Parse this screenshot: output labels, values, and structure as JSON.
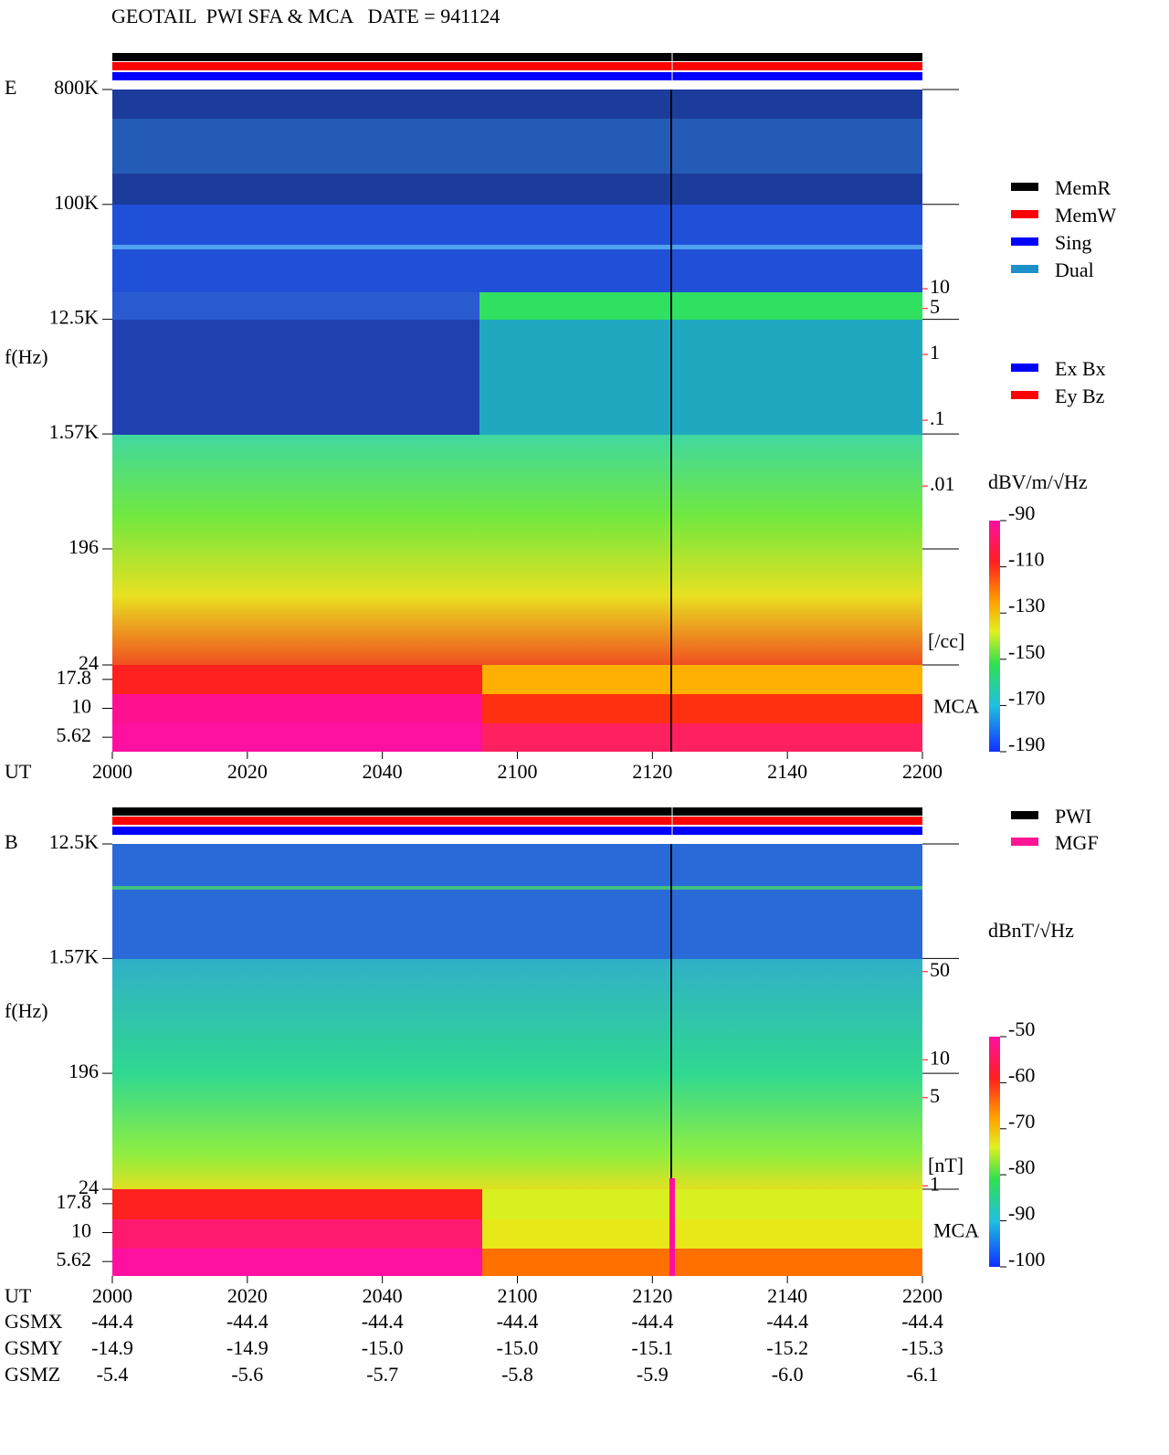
{
  "chart_data": [
    {
      "type": "spectrogram",
      "title": "GEOTAIL  PWI SFA & MCA   DATE = 941124",
      "panel_label": "E",
      "ylabel": "f(Hz)",
      "xlabel": "UT",
      "log_y": true,
      "ylim": [
        24,
        800000
      ],
      "yticks": [
        {
          "value": 800000,
          "label": "800K"
        },
        {
          "value": 100000,
          "label": "100K"
        },
        {
          "value": 12500,
          "label": "12.5K"
        },
        {
          "value": 1570,
          "label": "1.57K"
        },
        196,
        24
      ],
      "mca_label": "MCA",
      "mca_ticks": [
        17.8,
        10,
        5.62
      ],
      "categories": [
        "2000",
        "2020",
        "2040",
        "2100",
        "2120",
        "2140",
        "2200"
      ],
      "y2lim": [
        1.9e-05,
        10700
      ],
      "y2ticks": [
        10,
        5,
        1,
        {
          "value": 0.1,
          "label": ".1"
        },
        {
          "value": 0.01,
          "label": ".01"
        }
      ],
      "y2label": "[/cc]",
      "y2color": "#ff0000",
      "colorbar": {
        "label": "dBV/m/√Hz",
        "lim": [
          -190,
          -90
        ],
        "ticks": [
          -90,
          -110,
          -130,
          -150,
          -170,
          -190
        ]
      },
      "legend": [
        [
          {
            "name": "MemR",
            "color": "#000000"
          },
          {
            "name": "MemW",
            "color": "#ff0000"
          },
          {
            "name": "Sing",
            "color": "#0000ff"
          },
          {
            "name": "Dual",
            "color": "#1e90c8"
          }
        ],
        [
          {
            "name": "Ex Bx",
            "color": "#0000ff"
          },
          {
            "name": "Ey Bz",
            "color": "#ff0000"
          }
        ]
      ]
    },
    {
      "type": "spectrogram",
      "panel_label": "B",
      "ylabel": "f(Hz)",
      "xlabel": "UT",
      "log_y": true,
      "ylim": [
        24,
        12500
      ],
      "yticks": [
        {
          "value": 12500,
          "label": "12.5K"
        },
        {
          "value": 1570,
          "label": "1.57K"
        },
        196,
        24
      ],
      "mca_label": "MCA",
      "mca_ticks": [
        17.8,
        10,
        5.62
      ],
      "categories": [
        "2000",
        "2020",
        "2040",
        "2100",
        "2120",
        "2140",
        "2200"
      ],
      "y2lim": [
        0.94,
        515
      ],
      "y2ticks": [
        50,
        10,
        5,
        1
      ],
      "y2label": "[nT]",
      "y2color": "#ff0000",
      "colorbar": {
        "label": "dBnT/√Hz",
        "lim": [
          -100,
          -50
        ],
        "ticks": [
          -50,
          -60,
          -70,
          -80,
          -90,
          -100
        ]
      },
      "legend": [
        [
          {
            "name": "PWI",
            "color": "#000000"
          },
          {
            "name": "MGF",
            "color": "#ff1493"
          }
        ]
      ],
      "gsm": [
        {
          "name": "GSMX",
          "values": [
            "-44.4",
            "-44.4",
            "-44.4",
            "-44.4",
            "-44.4",
            "-44.4",
            "-44.4"
          ]
        },
        {
          "name": "GSMY",
          "values": [
            "-14.9",
            "-14.9",
            "-15.0",
            "-15.0",
            "-15.1",
            "-15.2",
            "-15.3"
          ]
        },
        {
          "name": "GSMZ",
          "values": [
            "-5.4",
            "-5.6",
            "-5.7",
            "-5.8",
            "-5.9",
            "-6.0",
            "-6.1"
          ]
        }
      ]
    }
  ]
}
